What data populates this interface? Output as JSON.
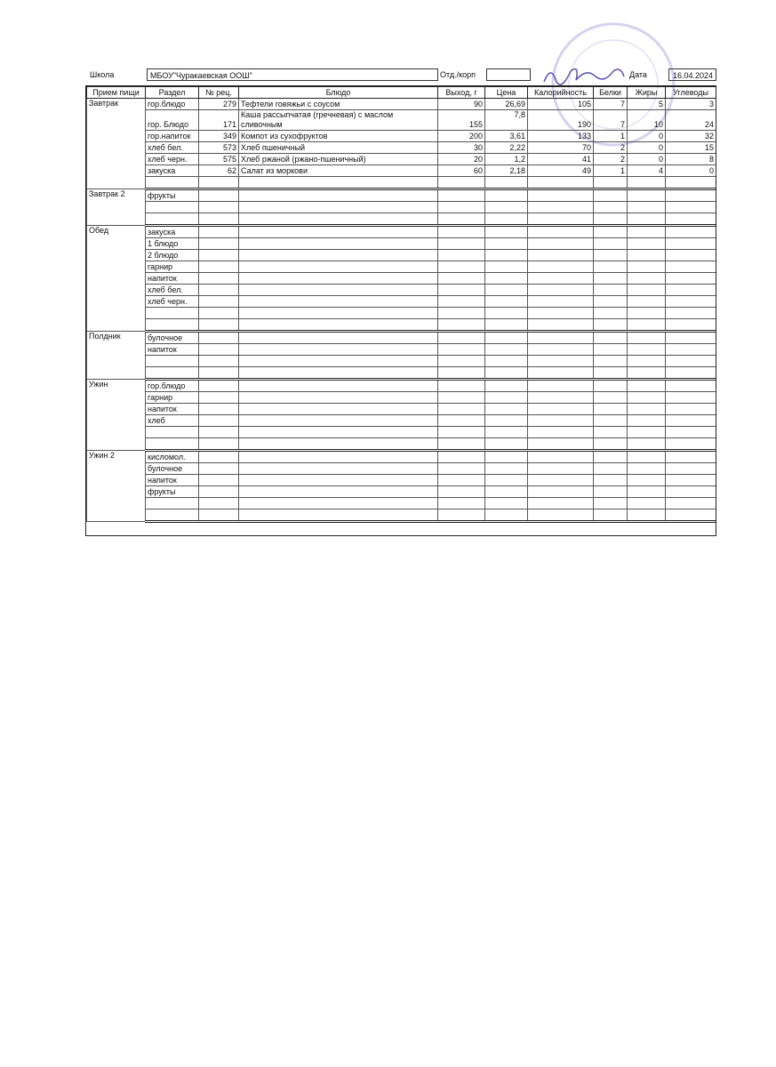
{
  "header": {
    "school_label": "Школа",
    "school": "МБОУ\"Чуракаевская ООШ\"",
    "dept_label": "Отд./корп",
    "date_label": "Дата",
    "date": "16.04.2024"
  },
  "table": {
    "columns": [
      "Прием пищи",
      "Раздел",
      "№ рец.",
      "Блюдо",
      "Выход, г",
      "Цена",
      "Калорийность",
      "Белки",
      "Жиры",
      "Углеводы"
    ],
    "meals": [
      {
        "name": "Завтрак",
        "rows": [
          {
            "section": "гор.блюдо",
            "recipe": 279,
            "dish": "Тефтели говяжьи с соусом",
            "output": 90,
            "price": "26,69",
            "calories": 105,
            "protein": 7,
            "fat": 5,
            "carbs": 3
          },
          {
            "section": "гор. Блюдо",
            "recipe": 171,
            "dish": "Каша рассыпчатая (гречневая) с маслом сливочным",
            "output": 155,
            "price": "7,8",
            "calories": 190,
            "protein": 7,
            "fat": 10,
            "carbs": 24
          },
          {
            "section": "гор.напиток",
            "recipe": 349,
            "dish": "Компот из сухофруктов",
            "output": 200,
            "price": "3,61",
            "calories": 133,
            "protein": 1,
            "fat": 0,
            "carbs": 32
          },
          {
            "section": "хлеб бел.",
            "recipe": 573,
            "dish": "Хлеб пшеничный",
            "output": 30,
            "price": "2,22",
            "calories": 70,
            "protein": 2,
            "fat": 0,
            "carbs": 15
          },
          {
            "section": "хлеб черн.",
            "recipe": 575,
            "dish": "Хлеб ржаной (ржано-пшеничный)",
            "output": 20,
            "price": "1,2",
            "calories": 41,
            "protein": 2,
            "fat": 0,
            "carbs": 8
          },
          {
            "section": "закуска",
            "recipe": 62,
            "dish": "Салат из моркови",
            "output": 60,
            "price": "2,18",
            "calories": 49,
            "protein": 1,
            "fat": 4,
            "carbs": 0
          }
        ]
      },
      {
        "name": "Завтрак 2",
        "rows": [
          {
            "section": "фрукты"
          }
        ]
      },
      {
        "name": "Обед",
        "rows": [
          {
            "section": "закуска"
          },
          {
            "section": "1 блюдо"
          },
          {
            "section": "2 блюдо"
          },
          {
            "section": "гарнир"
          },
          {
            "section": "напиток"
          },
          {
            "section": "хлеб бел."
          },
          {
            "section": "хлеб черн."
          }
        ]
      },
      {
        "name": "Полдник",
        "rows": [
          {
            "section": "булочное"
          },
          {
            "section": "напиток"
          }
        ]
      },
      {
        "name": "Ужин",
        "rows": [
          {
            "section": "гор.блюдо"
          },
          {
            "section": "гарнир"
          },
          {
            "section": "напиток"
          },
          {
            "section": "хлеб"
          }
        ]
      },
      {
        "name": "Ужин 2",
        "rows": [
          {
            "section": "кисломол."
          },
          {
            "section": "булочное"
          },
          {
            "section": "напиток"
          },
          {
            "section": "фрукты"
          }
        ]
      }
    ]
  }
}
